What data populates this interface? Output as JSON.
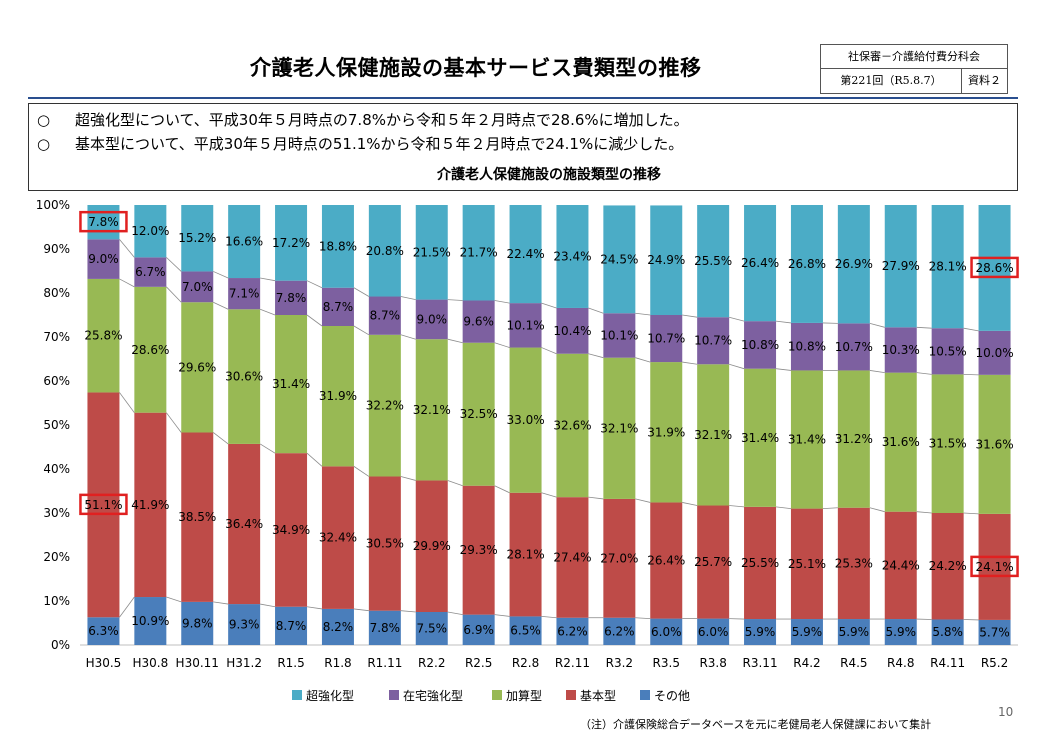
{
  "header": {
    "title": "介護老人保健施設の基本サービス費類型の推移",
    "ref_committee": "社保審－介護給付費分科会",
    "ref_meeting": "第221回（R5.8.7）",
    "ref_doc": "資料２"
  },
  "notes": {
    "bullet": "○",
    "line1": "超強化型について、平成30年５月時点の7.8%から令和５年２月時点で28.6%に増加した。",
    "line2": "基本型について、平成30年５月時点の51.1%から令和５年２月時点で24.1%に減少した。"
  },
  "chart_data": {
    "type": "bar",
    "stacked": true,
    "title": "介護老人保健施設の施設類型の推移",
    "categories": [
      "H30.5",
      "H30.8",
      "H30.11",
      "H31.2",
      "R1.5",
      "R1.8",
      "R1.11",
      "R2.2",
      "R2.5",
      "R2.8",
      "R2.11",
      "R3.2",
      "R3.5",
      "R3.8",
      "R3.11",
      "R4.2",
      "R4.5",
      "R4.8",
      "R4.11",
      "R5.2"
    ],
    "ylim": [
      0,
      100
    ],
    "yticks": [
      "0%",
      "10%",
      "20%",
      "30%",
      "40%",
      "50%",
      "60%",
      "70%",
      "80%",
      "90%",
      "100%"
    ],
    "legend_position": "bottom",
    "series": [
      {
        "name": "その他",
        "color": "#4a7ebb",
        "values": [
          6.3,
          10.9,
          9.8,
          9.3,
          8.7,
          8.2,
          7.8,
          7.5,
          6.9,
          6.5,
          6.2,
          6.2,
          6.0,
          6.0,
          5.9,
          5.9,
          5.9,
          5.9,
          5.8,
          5.7
        ]
      },
      {
        "name": "基本型",
        "color": "#be4b48",
        "values": [
          51.1,
          41.9,
          38.5,
          36.4,
          34.9,
          32.4,
          30.5,
          29.9,
          29.3,
          28.1,
          27.4,
          27.0,
          26.4,
          25.7,
          25.5,
          25.1,
          25.3,
          24.4,
          24.2,
          24.1
        ]
      },
      {
        "name": "加算型",
        "color": "#98b954",
        "values": [
          25.8,
          28.6,
          29.6,
          30.6,
          31.4,
          31.9,
          32.2,
          32.1,
          32.5,
          33.0,
          32.6,
          32.1,
          31.9,
          32.1,
          31.4,
          31.4,
          31.2,
          31.6,
          31.5,
          31.6
        ]
      },
      {
        "name": "在宅強化型",
        "color": "#7d60a0",
        "values": [
          9.0,
          6.7,
          7.0,
          7.1,
          7.8,
          8.7,
          8.7,
          9.0,
          9.6,
          10.1,
          10.4,
          10.1,
          10.7,
          10.7,
          10.8,
          10.8,
          10.7,
          10.3,
          10.5,
          10.0
        ]
      },
      {
        "name": "超強化型",
        "color": "#4bacc6",
        "values": [
          7.8,
          12.0,
          15.2,
          16.6,
          17.2,
          18.8,
          20.8,
          21.5,
          21.7,
          22.4,
          23.4,
          24.5,
          24.9,
          25.5,
          26.4,
          26.8,
          26.9,
          27.9,
          28.1,
          28.6
        ]
      }
    ],
    "highlighted": [
      {
        "series": "超強化型",
        "category": "H30.5"
      },
      {
        "series": "超強化型",
        "category": "R5.2"
      },
      {
        "series": "基本型",
        "category": "H30.5"
      },
      {
        "series": "基本型",
        "category": "R5.2"
      }
    ],
    "legend_order": [
      "超強化型",
      "在宅強化型",
      "加算型",
      "基本型",
      "その他"
    ]
  },
  "footer": {
    "source": "（注）介護保険総合データベースを元に老健局老人保健課において集計",
    "page": "10"
  },
  "colors": {
    "highlight": "#e02020",
    "accent_rule": "#2a4f8f"
  }
}
